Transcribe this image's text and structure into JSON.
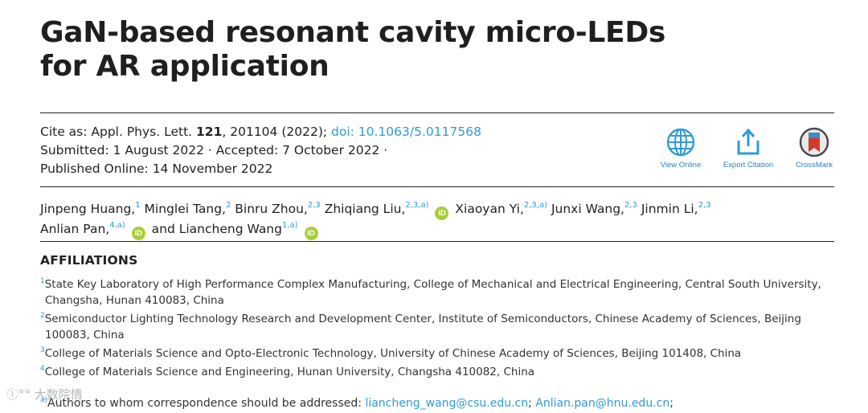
{
  "title": {
    "line1": "GaN-based resonant cavity micro-LEDs",
    "line2": "for AR application"
  },
  "citation": {
    "cite_label": "Cite as: Appl. Phys. Lett. ",
    "volume": "121",
    "rest": ", 201104 (2022); ",
    "doi": "doi: 10.1063/5.0117568",
    "dates_line": "Submitted: 1 August 2022 · Accepted: 7 October 2022 ·",
    "published_line": "Published Online: 14 November 2022"
  },
  "actions": {
    "view_online": "View Online",
    "export_citation": "Export Citation",
    "crossmark": "CrossMark",
    "icon_color": "#2f9bd6"
  },
  "authors": {
    "a1_name": "Jinpeng Huang,",
    "a1_sup": "1",
    "a2_name": "Minglei Tang,",
    "a2_sup": "2",
    "a3_name": "Binru Zhou,",
    "a3_sup": "2,3",
    "a4_name": "Zhiqiang Liu,",
    "a4_sup": "2,3,a)",
    "a5_name": "Xiaoyan Yi,",
    "a5_sup": "2,3,a)",
    "a6_name": "Junxi Wang,",
    "a6_sup": "2,3",
    "a7_name": "Jinmin Li,",
    "a7_sup": "2,3",
    "a8_name": "Anlian Pan,",
    "a8_sup": "4,a)",
    "a9_name": "and Liancheng Wang",
    "a9_sup": "1,a)",
    "orcid_text": "iD"
  },
  "affiliations": {
    "heading": "AFFILIATIONS",
    "items": [
      {
        "num": "1",
        "text": "State Key Laboratory of High Performance Complex Manufacturing, College of Mechanical and Electrical Engineering, Central South University, Changsha, Hunan 410083, China"
      },
      {
        "num": "2",
        "text": "Semiconductor Lighting Technology Research and Development Center, Institute of Semiconductors, Chinese Academy of Sciences, Beijing 100083, China"
      },
      {
        "num": "3",
        "text": "College of Materials Science and Opto-Electronic Technology, University of Chinese Academy of Sciences, Beijing 101408, China"
      },
      {
        "num": "4",
        "text": "College of Materials Science and Engineering, Hunan University, Changsha 410082, China"
      }
    ]
  },
  "correspondence": {
    "sup": "a)",
    "label": "Authors to whom correspondence should be addressed: ",
    "email1": "liancheng_wang@csu.edu.cn",
    "sep": "; ",
    "email2": "Anlian.pan@hnu.edu.cn",
    "end": ";"
  },
  "watermark": "大数院情"
}
